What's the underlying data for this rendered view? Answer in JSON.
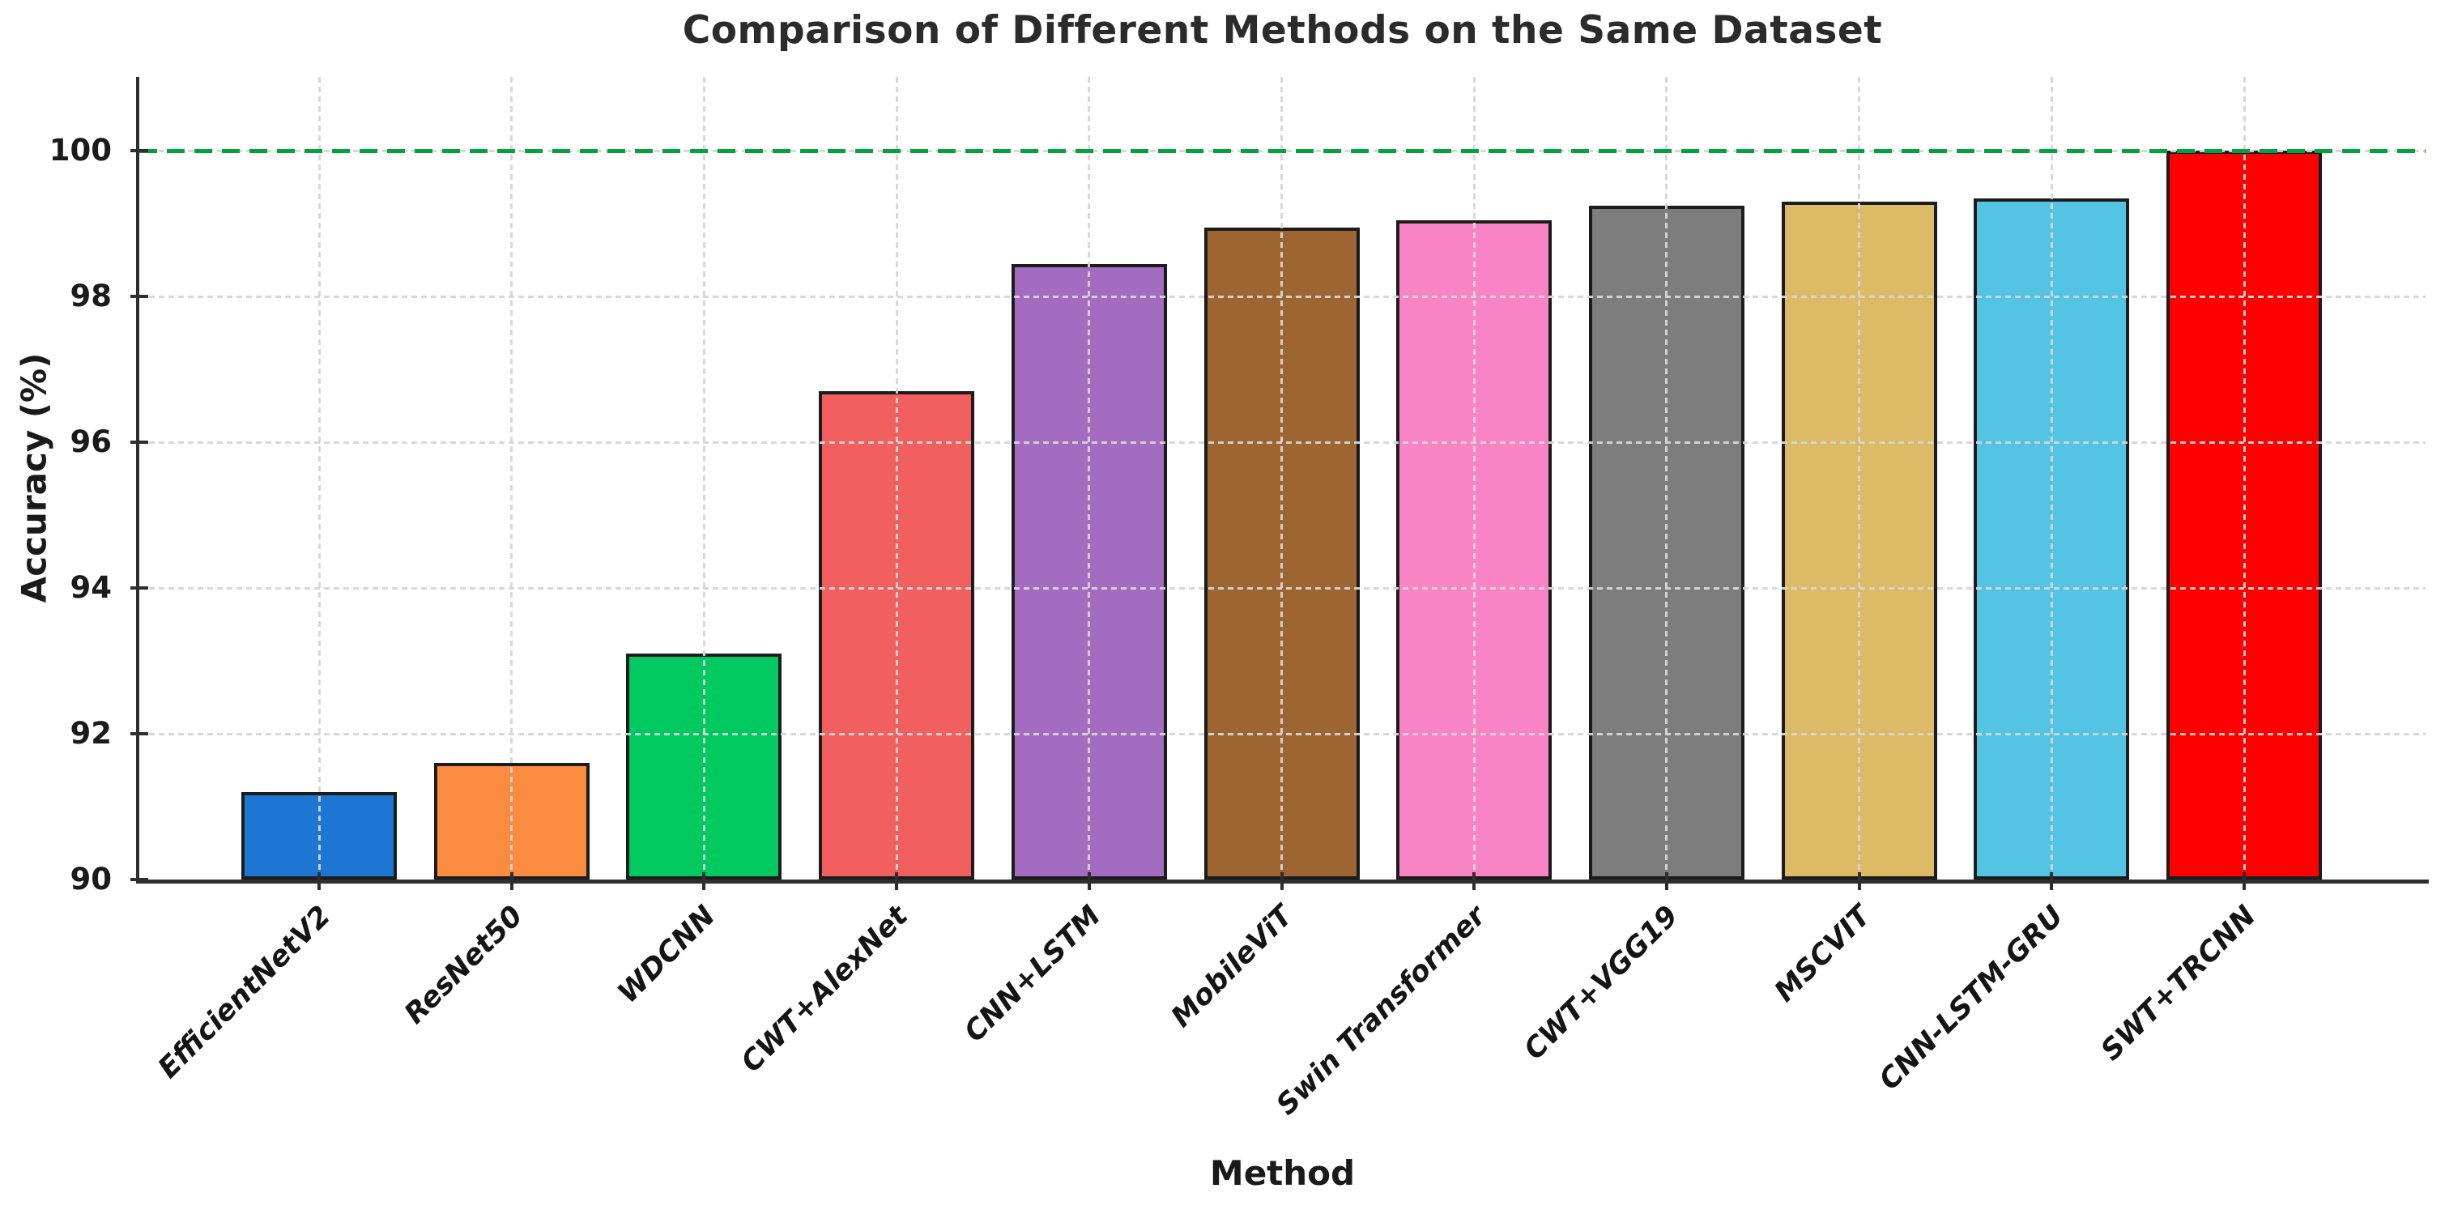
{
  "chart_data": {
    "type": "bar",
    "title": "Comparison of Different Methods on the Same Dataset",
    "xlabel": "Method",
    "ylabel": "Accuracy (%)",
    "ylim": [
      90,
      101
    ],
    "yticks": [
      90,
      92,
      94,
      96,
      98,
      100
    ],
    "grid": {
      "horizontal": true,
      "vertical": true,
      "style": "dashed",
      "color": "#d6d6d6",
      "above_bars": true
    },
    "legend": "none",
    "reference_line": {
      "y": 100,
      "color": "#00a33c",
      "style": "dashed"
    },
    "bar_edge_color": "#1c1c1c",
    "categories": [
      "EfficientNetV2",
      "ResNet50",
      "WDCNN",
      "CWT+AlexNet",
      "CNN+LSTM",
      "MobileViT",
      "Swin Transformer",
      "CWT+VGG19",
      "MSCVIT",
      "CNN-LSTM-GRU",
      "SWT+TRCNN"
    ],
    "values": [
      91.2,
      91.6,
      93.1,
      96.7,
      98.45,
      98.95,
      99.05,
      99.25,
      99.3,
      99.35,
      100.0
    ],
    "bar_colors": [
      "#1d76d2",
      "#fb8b3e",
      "#00c95f",
      "#f25f5f",
      "#a46cc0",
      "#9c6531",
      "#f884c5",
      "#7d7d7d",
      "#dcba66",
      "#54c4e4",
      "#ff0000"
    ]
  }
}
